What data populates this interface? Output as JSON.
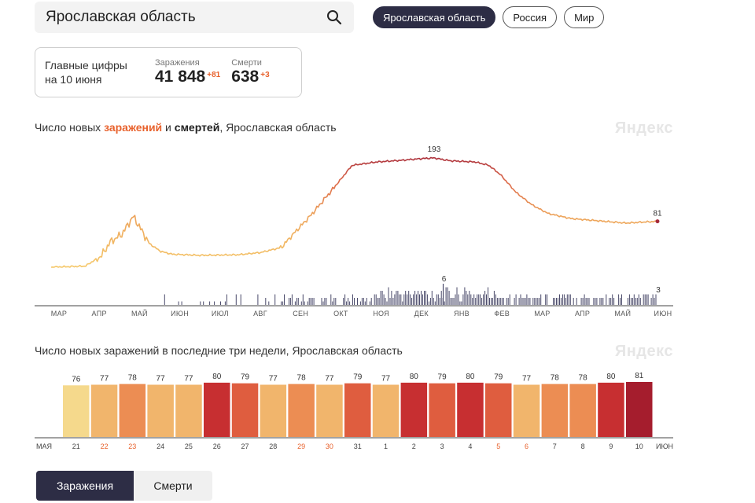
{
  "search": {
    "value": "Ярославская область",
    "icon": "search-icon"
  },
  "region_tabs": [
    {
      "label": "Ярославская область",
      "active": true
    },
    {
      "label": "Россия",
      "active": false
    },
    {
      "label": "Мир",
      "active": false
    }
  ],
  "summary": {
    "label_line1": "Главные цифры",
    "label_line2": "на 10 июня",
    "infections_caption": "Заражения",
    "infections_value": "41 848",
    "infections_delta": "+81",
    "deaths_caption": "Смерти",
    "deaths_value": "638",
    "deaths_delta": "+3"
  },
  "chart1_title": {
    "prefix": "Число новых ",
    "infections_word": "заражений",
    "middle": " и ",
    "deaths_word": "смертей",
    "suffix": ", Ярославская область"
  },
  "chart2_title": "Число новых заражений в последние три недели, Ярославская область",
  "watermark": "Яндекс",
  "mode_tabs": {
    "infections": "Заражения",
    "deaths": "Смерти"
  },
  "colors": {
    "accent": "#e8622d",
    "dark": "#2d2d45",
    "low": "#f5d98c",
    "high": "#a51d2d"
  },
  "chart_data": [
    {
      "type": "line",
      "name": "infections_daily",
      "x_ticks": [
        "МАР",
        "АПР",
        "МАЙ",
        "ИЮН",
        "ИЮЛ",
        "АВГ",
        "СЕН",
        "ОКТ",
        "НОЯ",
        "ДЕК",
        "ЯНВ",
        "ФЕВ",
        "МАР",
        "АПР",
        "МАЙ",
        "ИЮН"
      ],
      "keypoints": [
        [
          0,
          0
        ],
        [
          1.5,
          2
        ],
        [
          2.2,
          20
        ],
        [
          2.6,
          45
        ],
        [
          3.1,
          58
        ],
        [
          3.6,
          90
        ],
        [
          3.9,
          70
        ],
        [
          4.3,
          42
        ],
        [
          4.8,
          28
        ],
        [
          5.3,
          23
        ],
        [
          6.5,
          21
        ],
        [
          8.2,
          22
        ],
        [
          9.2,
          26
        ],
        [
          10.1,
          35
        ],
        [
          10.7,
          62
        ],
        [
          11.4,
          92
        ],
        [
          12.4,
          140
        ],
        [
          13.2,
          180
        ],
        [
          14.3,
          186
        ],
        [
          15.4,
          189
        ],
        [
          16.3,
          192
        ],
        [
          16.8,
          193
        ],
        [
          17.5,
          188
        ],
        [
          18.6,
          186
        ],
        [
          19.2,
          180
        ],
        [
          19.7,
          164
        ],
        [
          20.4,
          132
        ],
        [
          21.1,
          110
        ],
        [
          21.8,
          95
        ],
        [
          22.8,
          86
        ],
        [
          24.0,
          82
        ],
        [
          25.2,
          78
        ],
        [
          26.1,
          80
        ],
        [
          26.6,
          81
        ]
      ],
      "peak_label": "193",
      "last_label": "81",
      "ylim": [
        0,
        200
      ]
    },
    {
      "type": "bar",
      "name": "deaths_daily",
      "x_ticks": [
        "МАР",
        "АПР",
        "МАЙ",
        "ИЮН",
        "ИЮЛ",
        "АВГ",
        "СЕН",
        "ОКТ",
        "НОЯ",
        "ДЕК",
        "ЯНВ",
        "ФЕВ",
        "МАР",
        "АПР",
        "МАЙ",
        "ИЮН"
      ],
      "peak_label": "6",
      "last_label": "3",
      "ylim": [
        0,
        6
      ]
    },
    {
      "type": "bar",
      "name": "infections_last_three_weeks",
      "edge_labels": {
        "left": "МАЯ",
        "right": "ИЮН"
      },
      "categories": [
        "21",
        "22",
        "23",
        "24",
        "25",
        "26",
        "27",
        "28",
        "29",
        "30",
        "31",
        "1",
        "2",
        "3",
        "4",
        "5",
        "6",
        "7",
        "8",
        "9",
        "10"
      ],
      "weekend": [
        false,
        true,
        true,
        false,
        false,
        false,
        false,
        false,
        true,
        true,
        false,
        false,
        false,
        false,
        false,
        true,
        true,
        false,
        false,
        false,
        false
      ],
      "values": [
        76,
        77,
        78,
        77,
        77,
        80,
        79,
        77,
        78,
        77,
        79,
        77,
        80,
        79,
        80,
        79,
        77,
        78,
        78,
        80,
        81
      ]
    }
  ]
}
